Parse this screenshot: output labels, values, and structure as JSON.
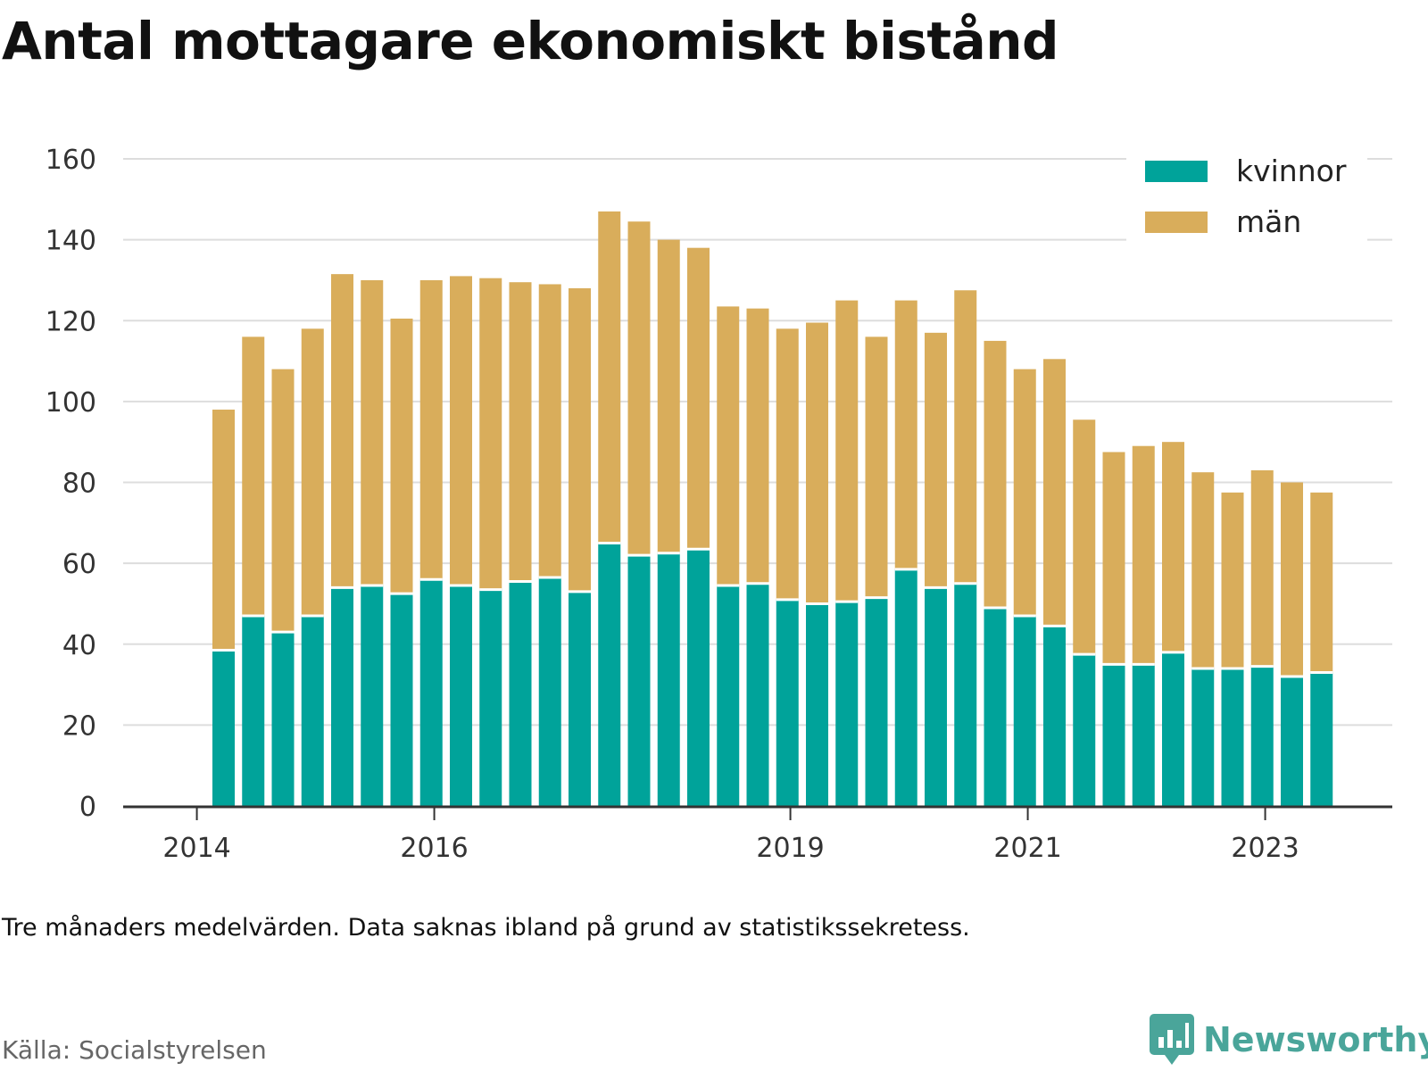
{
  "title": "Antal mottagare ekonomiskt bistånd",
  "note": "Tre månaders medelvärden. Data saknas ibland på grund av statistikssekretess.",
  "source": "Källa: Socialstyrelsen",
  "brand": {
    "name": "Newsworthy",
    "icon": "newsworthy-logo-icon"
  },
  "colors": {
    "kvinnor": "#00a39a",
    "man": "#d9ad5b",
    "grid": "#dddddd",
    "axis": "#333333"
  },
  "chart_data": {
    "type": "bar",
    "stacked": true,
    "ylim": [
      0,
      160
    ],
    "yticks": [
      0,
      20,
      40,
      60,
      80,
      100,
      120,
      140,
      160
    ],
    "xticks": [
      {
        "label": "2014",
        "pos": -0.9
      },
      {
        "label": "2016",
        "pos": 7.1
      },
      {
        "label": "2019",
        "pos": 19.1
      },
      {
        "label": "2021",
        "pos": 27.1
      },
      {
        "label": "2023",
        "pos": 35.1
      }
    ],
    "grid": true,
    "legend_position": "top-right",
    "series": [
      {
        "name": "kvinnor",
        "values": [
          38.5,
          47,
          43,
          47,
          54,
          54.5,
          52.5,
          56,
          54.5,
          53.5,
          55.5,
          56.5,
          53,
          65,
          62,
          62.5,
          63.5,
          54.5,
          55,
          51,
          50,
          50.5,
          51.5,
          58.5,
          54,
          55,
          49,
          47,
          44.5,
          37.5,
          35,
          35,
          38,
          34,
          34,
          34.5,
          32,
          33
        ]
      },
      {
        "name": "män",
        "values": [
          59.5,
          69,
          65,
          71,
          77.5,
          75.5,
          68,
          74,
          76.5,
          77,
          74,
          72.5,
          75,
          82,
          82.5,
          77.5,
          74.5,
          69,
          68,
          67,
          69.5,
          74.5,
          64.5,
          66.5,
          63,
          72.5,
          66,
          61,
          66,
          58,
          52.5,
          54,
          52,
          48.5,
          43.5,
          48.5,
          48,
          44.5
        ]
      }
    ]
  }
}
